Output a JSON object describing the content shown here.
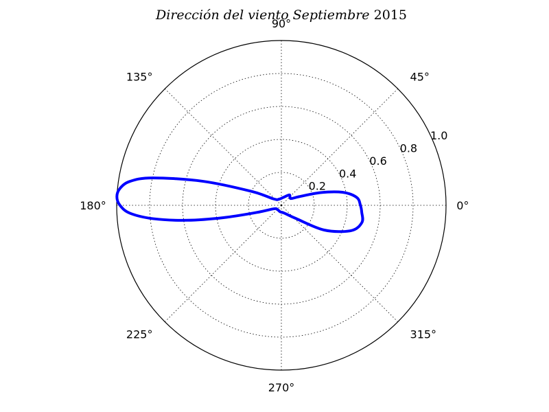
{
  "chart_data": {
    "type": "line",
    "projection": "polar",
    "title_main": "Dirección del viento Septiembre",
    "title_year": "2015",
    "angle_ticks": [
      {
        "deg": 0,
        "label": "0°"
      },
      {
        "deg": 45,
        "label": "45°"
      },
      {
        "deg": 90,
        "label": "90°"
      },
      {
        "deg": 135,
        "label": "135°"
      },
      {
        "deg": 180,
        "label": "180°"
      },
      {
        "deg": 225,
        "label": "225°"
      },
      {
        "deg": 270,
        "label": "270°"
      },
      {
        "deg": 315,
        "label": "315°"
      }
    ],
    "radial_ticks": [
      {
        "value": 0.2,
        "label": "0.2"
      },
      {
        "value": 0.4,
        "label": "0.4"
      },
      {
        "value": 0.6,
        "label": "0.6"
      },
      {
        "value": 0.8,
        "label": "0.8"
      },
      {
        "value": 1.0,
        "label": "1.0"
      }
    ],
    "rlim": [
      0,
      1.0
    ],
    "grid": true,
    "series": [
      {
        "color": "#0000ff",
        "points": [
          {
            "theta": 0,
            "r": 0.48
          },
          {
            "theta": 6,
            "r": 0.46
          },
          {
            "theta": 12,
            "r": 0.38
          },
          {
            "theta": 18,
            "r": 0.25
          },
          {
            "theta": 26,
            "r": 0.12
          },
          {
            "theta": 36,
            "r": 0.07
          },
          {
            "theta": 52,
            "r": 0.08
          },
          {
            "theta": 75,
            "r": 0.05
          },
          {
            "theta": 110,
            "r": 0.04
          },
          {
            "theta": 140,
            "r": 0.06
          },
          {
            "theta": 155,
            "r": 0.2
          },
          {
            "theta": 163,
            "r": 0.5
          },
          {
            "theta": 168,
            "r": 0.8
          },
          {
            "theta": 171,
            "r": 0.93
          },
          {
            "theta": 174,
            "r": 0.985
          },
          {
            "theta": 177,
            "r": 1.0
          },
          {
            "theta": 180,
            "r": 0.98
          },
          {
            "theta": 183,
            "r": 0.92
          },
          {
            "theta": 186,
            "r": 0.78
          },
          {
            "theta": 189,
            "r": 0.58
          },
          {
            "theta": 192,
            "r": 0.36
          },
          {
            "theta": 196,
            "r": 0.16
          },
          {
            "theta": 205,
            "r": 0.05
          },
          {
            "theta": 230,
            "r": 0.035
          },
          {
            "theta": 260,
            "r": 0.04
          },
          {
            "theta": 290,
            "r": 0.05
          },
          {
            "theta": 318,
            "r": 0.12
          },
          {
            "theta": 330,
            "r": 0.3
          },
          {
            "theta": 340,
            "r": 0.45
          },
          {
            "theta": 348,
            "r": 0.5
          },
          {
            "theta": 355,
            "r": 0.49
          },
          {
            "theta": 360,
            "r": 0.48
          }
        ]
      }
    ]
  }
}
